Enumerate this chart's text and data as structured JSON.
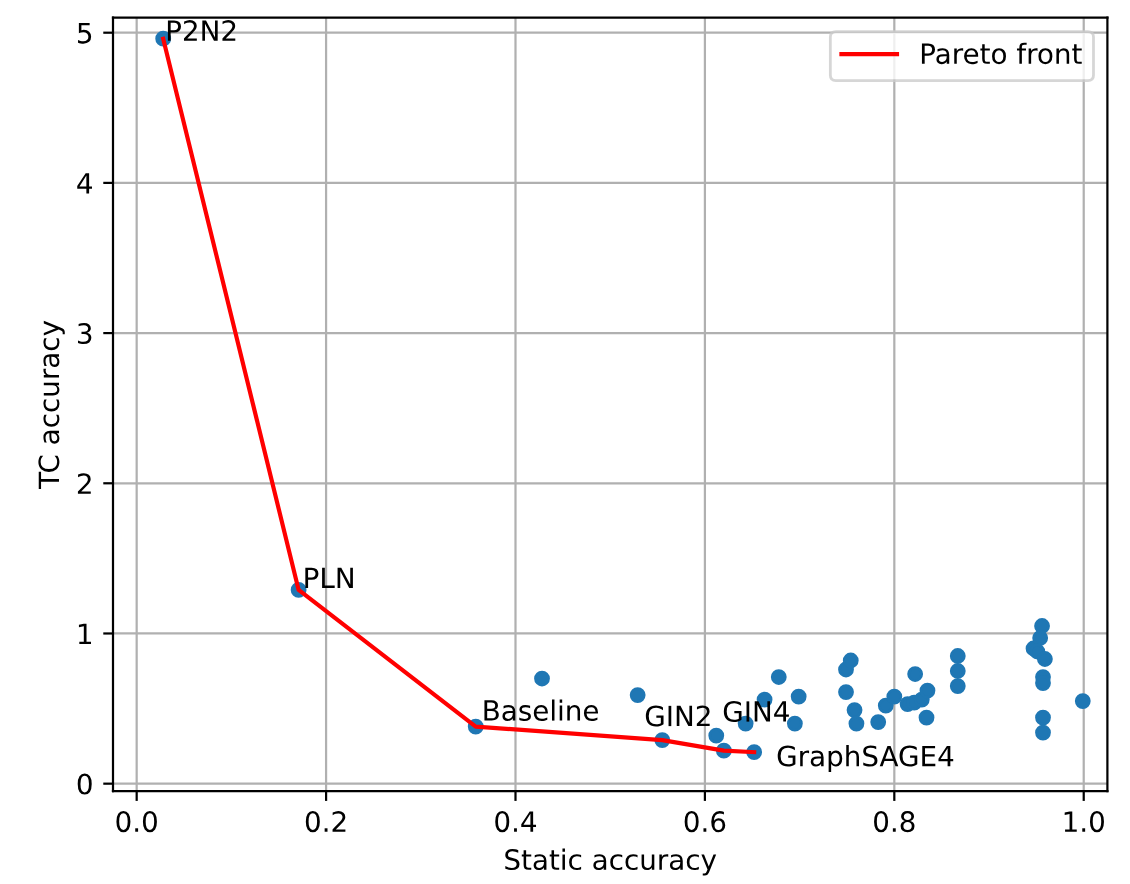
{
  "chart_data": {
    "type": "scatter",
    "xlabel": "Static accuracy",
    "ylabel": "TC accuracy",
    "xlim": [
      -0.025,
      1.025
    ],
    "ylim": [
      -0.05,
      5.1
    ],
    "xticks": [
      {
        "value": 0,
        "label": "0.0"
      },
      0.2,
      0.4,
      0.6,
      0.8,
      {
        "value": 1,
        "label": "1.0"
      }
    ],
    "yticks": [
      0,
      1,
      2,
      3,
      4,
      5
    ],
    "grid": true,
    "legend": "top right",
    "series": [
      {
        "color": "#1f77b4",
        "marker": "circle",
        "x": [
          0.028,
          0.171,
          0.358,
          0.428,
          0.529,
          0.555,
          0.612,
          0.62,
          0.643,
          0.652,
          0.663,
          0.678,
          0.699,
          0.695,
          0.749,
          0.754,
          0.749,
          0.758,
          0.76,
          0.783,
          0.791,
          0.8,
          0.814,
          0.822,
          0.821,
          0.829,
          0.835,
          0.834,
          0.867,
          0.867,
          0.867,
          0.947,
          0.956,
          0.954,
          0.951,
          0.959,
          0.957,
          0.957,
          0.957,
          0.957,
          0.999
        ],
        "values": [
          4.96,
          1.29,
          0.38,
          0.7,
          0.59,
          0.29,
          0.32,
          0.22,
          0.4,
          0.21,
          0.56,
          0.71,
          0.58,
          0.4,
          0.76,
          0.82,
          0.61,
          0.49,
          0.4,
          0.41,
          0.52,
          0.58,
          0.53,
          0.73,
          0.54,
          0.56,
          0.62,
          0.44,
          0.85,
          0.75,
          0.65,
          0.9,
          1.05,
          0.97,
          0.88,
          0.83,
          0.71,
          0.67,
          0.44,
          0.34,
          0.55
        ]
      },
      {
        "type": "line",
        "name": "Pareto front",
        "color": "#ff0000",
        "marker": "none",
        "line_style": "solid",
        "x": [
          0.028,
          0.171,
          0.358,
          0.555,
          0.62,
          0.652
        ],
        "values": [
          4.96,
          1.29,
          0.38,
          0.29,
          0.22,
          0.21
        ]
      }
    ],
    "annotations": [
      {
        "text": "P2N2",
        "x": 0.028,
        "y": 4.96
      },
      {
        "text": "PLN",
        "x": 0.171,
        "y": 1.29
      },
      {
        "text": "Baseline",
        "x": 0.358,
        "y": 0.38
      },
      {
        "text": "GIN2",
        "x": 0.555,
        "y": 0.29
      },
      {
        "text": "GIN4",
        "x": 0.612,
        "y": 0.32
      },
      {
        "text": "GraphSAGE4",
        "x": 0.652,
        "y": 0.21
      }
    ]
  }
}
